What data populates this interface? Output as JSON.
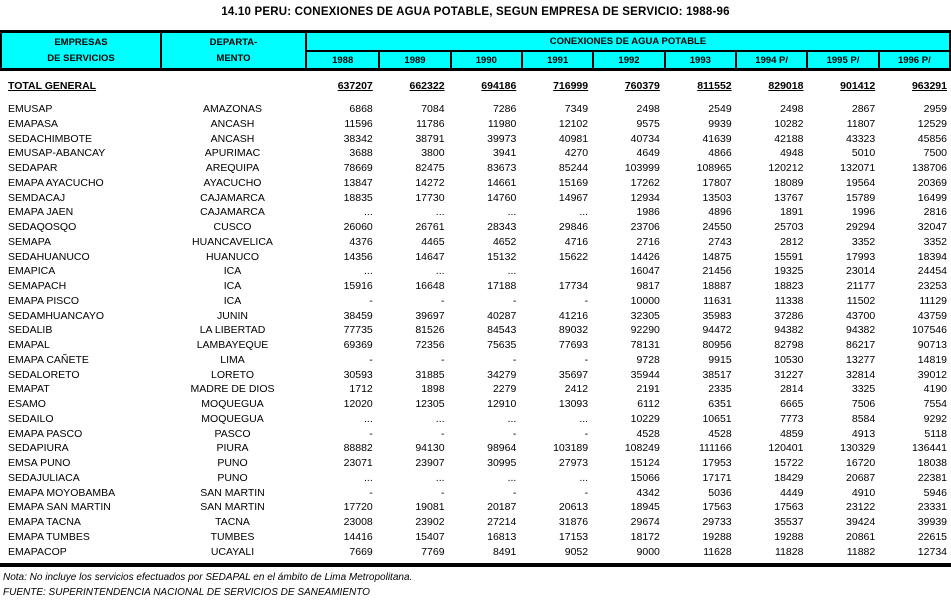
{
  "title": "14.10  PERU: CONEXIONES DE AGUA POTABLE, SEGUN EMPRESA DE SERVICIO: 1988-96",
  "colors": {
    "header_bg": "#00ffff",
    "border": "#000000",
    "text": "#000000"
  },
  "header": {
    "col1_line1": "EMPRESAS",
    "col1_line2": "DE SERVICIOS",
    "col2_line1": "DEPARTA-",
    "col2_line2": "MENTO",
    "span_label": "CONEXIONES DE AGUA POTABLE",
    "years": [
      "1988",
      "1989",
      "1990",
      "1991",
      "1992",
      "1993",
      "1994 P/",
      "1995 P/",
      "1996 P/"
    ]
  },
  "total_row": {
    "label": "TOTAL GENERAL",
    "values": [
      "637207",
      "662322",
      "694186",
      "716999",
      "760379",
      "811552",
      "829018",
      "901412",
      "963291"
    ]
  },
  "rows": [
    {
      "empresa": "EMUSAP",
      "departamento": "AMAZONAS",
      "values": [
        "6868",
        "7084",
        "7286",
        "7349",
        "2498",
        "2549",
        "2498",
        "2867",
        "2959"
      ]
    },
    {
      "empresa": "EMAPASA",
      "departamento": "ANCASH",
      "values": [
        "11596",
        "11786",
        "11980",
        "12102",
        "9575",
        "9939",
        "10282",
        "11807",
        "12529"
      ]
    },
    {
      "empresa": "SEDACHIMBOTE",
      "departamento": "ANCASH",
      "values": [
        "38342",
        "38791",
        "39973",
        "40981",
        "40734",
        "41639",
        "42188",
        "43323",
        "45856"
      ]
    },
    {
      "empresa": "EMUSAP-ABANCAY",
      "departamento": "APURIMAC",
      "values": [
        "3688",
        "3800",
        "3941",
        "4270",
        "4649",
        "4866",
        "4948",
        "5010",
        "7500"
      ]
    },
    {
      "empresa": "SEDAPAR",
      "departamento": "AREQUIPA",
      "values": [
        "78669",
        "82475",
        "83673",
        "85244",
        "103999",
        "108965",
        "120212",
        "132071",
        "138706"
      ]
    },
    {
      "empresa": "EMAPA AYACUCHO",
      "departamento": "AYACUCHO",
      "values": [
        "13847",
        "14272",
        "14661",
        "15169",
        "17262",
        "17807",
        "18089",
        "19564",
        "20369"
      ]
    },
    {
      "empresa": "SEMDACAJ",
      "departamento": "CAJAMARCA",
      "values": [
        "18835",
        "17730",
        "14760",
        "14967",
        "12934",
        "13503",
        "13767",
        "15789",
        "16499"
      ]
    },
    {
      "empresa": "EMAPA JAEN",
      "departamento": "CAJAMARCA",
      "values": [
        "...",
        "...",
        "...",
        "...",
        "1986",
        "4896",
        "1891",
        "1996",
        "2816"
      ]
    },
    {
      "empresa": "SEDAQOSQO",
      "departamento": "CUSCO",
      "values": [
        "26060",
        "26761",
        "28343",
        "29846",
        "23706",
        "24550",
        "25703",
        "29294",
        "32047"
      ]
    },
    {
      "empresa": "SEMAPA",
      "departamento": "HUANCAVELICA",
      "values": [
        "4376",
        "4465",
        "4652",
        "4716",
        "2716",
        "2743",
        "2812",
        "3352",
        "3352"
      ]
    },
    {
      "empresa": "SEDAHUANUCO",
      "departamento": "HUANUCO",
      "values": [
        "14356",
        "14647",
        "15132",
        "15622",
        "14426",
        "14875",
        "15591",
        "17993",
        "18394"
      ]
    },
    {
      "empresa": "EMAPICA",
      "departamento": "ICA",
      "values": [
        "...",
        "...",
        "...",
        "",
        "16047",
        "21456",
        "19325",
        "23014",
        "24454"
      ]
    },
    {
      "empresa": "SEMAPACH",
      "departamento": "ICA",
      "values": [
        "15916",
        "16648",
        "17188",
        "17734",
        "9817",
        "18887",
        "18823",
        "21177",
        "23253"
      ]
    },
    {
      "empresa": "EMAPA PISCO",
      "departamento": "ICA",
      "values": [
        "-",
        "-",
        "-",
        "-",
        "10000",
        "11631",
        "11338",
        "11502",
        "11129"
      ]
    },
    {
      "empresa": "SEDAMHUANCAYO",
      "departamento": "JUNIN",
      "values": [
        "38459",
        "39697",
        "40287",
        "41216",
        "32305",
        "35983",
        "37286",
        "43700",
        "43759"
      ]
    },
    {
      "empresa": "SEDALIB",
      "departamento": "LA LIBERTAD",
      "values": [
        "77735",
        "81526",
        "84543",
        "89032",
        "92290",
        "94472",
        "94382",
        "94382",
        "107546"
      ]
    },
    {
      "empresa": "EMAPAL",
      "departamento": "LAMBAYEQUE",
      "values": [
        "69369",
        "72356",
        "75635",
        "77693",
        "78131",
        "80956",
        "82798",
        "86217",
        "90713"
      ]
    },
    {
      "empresa": "EMAPA CAÑETE",
      "departamento": "LIMA",
      "values": [
        "-",
        "-",
        "-",
        "-",
        "9728",
        "9915",
        "10530",
        "13277",
        "14819"
      ]
    },
    {
      "empresa": "SEDALORETO",
      "departamento": "LORETO",
      "values": [
        "30593",
        "31885",
        "34279",
        "35697",
        "35944",
        "38517",
        "31227",
        "32814",
        "39012"
      ]
    },
    {
      "empresa": "EMAPAT",
      "departamento": "MADRE DE DIOS",
      "values": [
        "1712",
        "1898",
        "2279",
        "2412",
        "2191",
        "2335",
        "2814",
        "3325",
        "4190"
      ]
    },
    {
      "empresa": "ESAMO",
      "departamento": "MOQUEGUA",
      "values": [
        "12020",
        "12305",
        "12910",
        "13093",
        "6112",
        "6351",
        "6665",
        "7506",
        "7554"
      ]
    },
    {
      "empresa": "SEDAILO",
      "departamento": "MOQUEGUA",
      "values": [
        "...",
        "...",
        "...",
        "...",
        "10229",
        "10651",
        "7773",
        "8584",
        "9292"
      ]
    },
    {
      "empresa": "EMAPA PASCO",
      "departamento": "PASCO",
      "values": [
        "-",
        "-",
        "-",
        "-",
        "4528",
        "4528",
        "4859",
        "4913",
        "5118"
      ]
    },
    {
      "empresa": "SEDAPIURA",
      "departamento": "PIURA",
      "values": [
        "88882",
        "94130",
        "98964",
        "103189",
        "108249",
        "111166",
        "120401",
        "130329",
        "136441"
      ]
    },
    {
      "empresa": "EMSA PUNO",
      "departamento": "PUNO",
      "values": [
        "23071",
        "23907",
        "30995",
        "27973",
        "15124",
        "17953",
        "15722",
        "16720",
        "18038"
      ]
    },
    {
      "empresa": "SEDAJULIACA",
      "departamento": "PUNO",
      "values": [
        "...",
        "...",
        "...",
        "...",
        "15066",
        "17171",
        "18429",
        "20687",
        "22381"
      ]
    },
    {
      "empresa": "EMAPA MOYOBAMBA",
      "departamento": "SAN MARTIN",
      "values": [
        "-",
        "-",
        "-",
        "-",
        "4342",
        "5036",
        "4449",
        "4910",
        "5946"
      ]
    },
    {
      "empresa": "EMAPA SAN MARTIN",
      "departamento": "SAN MARTIN",
      "values": [
        "17720",
        "19081",
        "20187",
        "20613",
        "18945",
        "17563",
        "17563",
        "23122",
        "23331"
      ]
    },
    {
      "empresa": "EMAPA TACNA",
      "departamento": "TACNA",
      "values": [
        "23008",
        "23902",
        "27214",
        "31876",
        "29674",
        "29733",
        "35537",
        "39424",
        "39939"
      ]
    },
    {
      "empresa": "EMAPA TUMBES",
      "departamento": "TUMBES",
      "values": [
        "14416",
        "15407",
        "16813",
        "17153",
        "18172",
        "19288",
        "19288",
        "20861",
        "22615"
      ]
    },
    {
      "empresa": "EMAPACOP",
      "departamento": "UCAYALI",
      "values": [
        "7669",
        "7769",
        "8491",
        "9052",
        "9000",
        "11628",
        "11828",
        "11882",
        "12734"
      ]
    }
  ],
  "notes": {
    "nota": "Nota: No incluye los servicios efectuados por SEDAPAL en el ámbito de Lima Metropolitana.",
    "fuente": "FUENTE: SUPERINTENDENCIA NACIONAL DE SERVICIOS DE SANEAMIENTO"
  }
}
